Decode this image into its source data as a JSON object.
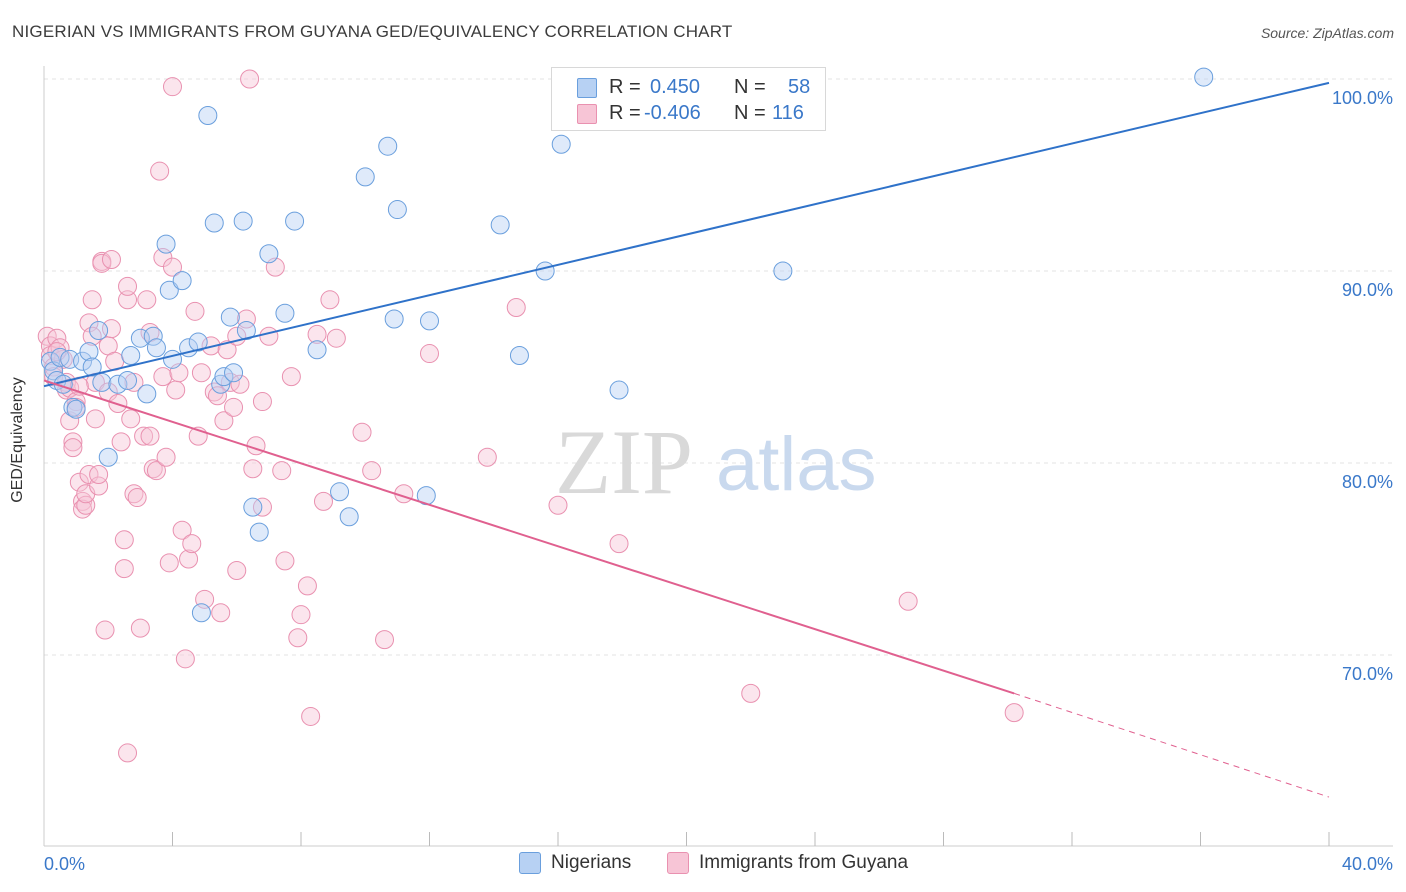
{
  "title": "NIGERIAN VS IMMIGRANTS FROM GUYANA GED/EQUIVALENCY CORRELATION CHART",
  "source": "Source: ZipAtlas.com",
  "watermark": {
    "zip": "ZIP",
    "atlas": "atlas"
  },
  "legend": {
    "series1": {
      "r_label": "R =",
      "r_value": "0.450",
      "n_label": "N =",
      "n_value": "58"
    },
    "series2": {
      "r_label": "R =",
      "r_value": "-0.406",
      "n_label": "N =",
      "n_value": "116"
    }
  },
  "chart_data": {
    "type": "scatter",
    "title": "NIGERIAN VS IMMIGRANTS FROM GUYANA GED/EQUIVALENCY CORRELATION CHART",
    "xlabel": "",
    "ylabel": "GED/Equivalency",
    "xlim": [
      0,
      40
    ],
    "ylim": [
      60,
      102
    ],
    "x_tick_labels": [
      "0.0%",
      "40.0%"
    ],
    "y_tick_labels": [
      "100.0%",
      "90.0%",
      "80.0%",
      "70.0%"
    ],
    "y_ticks": [
      100,
      90,
      80,
      70
    ],
    "grid": true,
    "legend_position": "bottom-center",
    "colors": {
      "series1": "#6a9fdd",
      "series1_fill": "#b7d1f3",
      "series1_line": "#2f72c9",
      "series2": "#e991b0",
      "series2_fill": "#f7c5d6",
      "series2_line": "#e0608f",
      "axis_text": "#3a78c9"
    },
    "series": [
      {
        "name": "Nigerians",
        "trend": {
          "x0": 0,
          "y0": 84.0,
          "x1": 40,
          "y1": 99.8
        },
        "points": [
          [
            0.2,
            85.3
          ],
          [
            0.3,
            84.8
          ],
          [
            0.4,
            84.3
          ],
          [
            0.5,
            85.5
          ],
          [
            0.6,
            84.1
          ],
          [
            0.8,
            85.4
          ],
          [
            0.9,
            82.9
          ],
          [
            1.0,
            82.8
          ],
          [
            1.2,
            85.3
          ],
          [
            1.4,
            85.8
          ],
          [
            1.5,
            85.0
          ],
          [
            1.7,
            86.9
          ],
          [
            1.8,
            84.2
          ],
          [
            2.0,
            80.3
          ],
          [
            2.3,
            84.1
          ],
          [
            2.6,
            84.3
          ],
          [
            2.7,
            85.6
          ],
          [
            3.0,
            86.5
          ],
          [
            3.2,
            83.6
          ],
          [
            3.4,
            86.6
          ],
          [
            3.5,
            86.0
          ],
          [
            3.8,
            91.4
          ],
          [
            3.9,
            89.0
          ],
          [
            4.0,
            85.4
          ],
          [
            4.3,
            89.5
          ],
          [
            4.5,
            86.0
          ],
          [
            4.8,
            86.3
          ],
          [
            5.1,
            98.1
          ],
          [
            5.3,
            92.5
          ],
          [
            5.5,
            84.1
          ],
          [
            5.6,
            84.5
          ],
          [
            5.8,
            87.6
          ],
          [
            5.9,
            84.7
          ],
          [
            6.2,
            92.6
          ],
          [
            6.3,
            86.9
          ],
          [
            6.5,
            77.7
          ],
          [
            6.7,
            76.4
          ],
          [
            7.0,
            90.9
          ],
          [
            7.5,
            87.8
          ],
          [
            7.8,
            92.6
          ],
          [
            8.5,
            85.9
          ],
          [
            9.2,
            78.5
          ],
          [
            9.5,
            77.2
          ],
          [
            10.0,
            94.9
          ],
          [
            10.7,
            96.5
          ],
          [
            10.9,
            87.5
          ],
          [
            11.0,
            93.2
          ],
          [
            11.9,
            78.3
          ],
          [
            12.0,
            87.4
          ],
          [
            14.2,
            92.4
          ],
          [
            14.8,
            85.6
          ],
          [
            15.6,
            90.0
          ],
          [
            16.1,
            96.6
          ],
          [
            17.9,
            83.8
          ],
          [
            18.9,
            100.1
          ],
          [
            23.0,
            90.0
          ],
          [
            36.1,
            100.1
          ],
          [
            4.9,
            72.2
          ]
        ]
      },
      {
        "name": "Immigrants from Guyana",
        "trend": {
          "x0": 0,
          "y0": 84.3,
          "x1": 30.2,
          "y1": 68.0,
          "dash_x1": 40,
          "dash_y1": 62.6
        },
        "points": [
          [
            0.1,
            86.6
          ],
          [
            0.2,
            86.1
          ],
          [
            0.2,
            85.6
          ],
          [
            0.3,
            85.0
          ],
          [
            0.3,
            84.5
          ],
          [
            0.4,
            86.5
          ],
          [
            0.5,
            86.0
          ],
          [
            0.6,
            85.4
          ],
          [
            0.7,
            84.2
          ],
          [
            0.7,
            83.8
          ],
          [
            0.8,
            83.9
          ],
          [
            0.8,
            82.2
          ],
          [
            0.9,
            81.1
          ],
          [
            0.9,
            80.8
          ],
          [
            1.0,
            83.2
          ],
          [
            1.0,
            82.9
          ],
          [
            1.1,
            79.0
          ],
          [
            1.2,
            78.0
          ],
          [
            1.2,
            77.6
          ],
          [
            1.3,
            77.8
          ],
          [
            1.3,
            78.4
          ],
          [
            1.4,
            79.4
          ],
          [
            1.4,
            87.3
          ],
          [
            1.5,
            88.5
          ],
          [
            1.5,
            86.6
          ],
          [
            1.6,
            84.2
          ],
          [
            1.6,
            82.3
          ],
          [
            1.7,
            78.8
          ],
          [
            1.7,
            79.4
          ],
          [
            1.8,
            90.5
          ],
          [
            1.8,
            90.4
          ],
          [
            1.9,
            71.3
          ],
          [
            2.0,
            86.1
          ],
          [
            2.0,
            83.7
          ],
          [
            2.1,
            90.6
          ],
          [
            2.1,
            87.0
          ],
          [
            2.2,
            85.3
          ],
          [
            2.3,
            83.1
          ],
          [
            2.4,
            81.1
          ],
          [
            2.5,
            76.0
          ],
          [
            2.5,
            74.5
          ],
          [
            2.6,
            88.5
          ],
          [
            2.6,
            89.2
          ],
          [
            2.7,
            82.3
          ],
          [
            2.8,
            84.2
          ],
          [
            2.8,
            78.4
          ],
          [
            2.9,
            78.2
          ],
          [
            3.0,
            71.4
          ],
          [
            3.1,
            81.4
          ],
          [
            3.2,
            88.5
          ],
          [
            3.3,
            86.8
          ],
          [
            3.3,
            81.4
          ],
          [
            3.4,
            79.7
          ],
          [
            3.5,
            79.6
          ],
          [
            3.6,
            95.2
          ],
          [
            3.7,
            90.7
          ],
          [
            3.7,
            84.5
          ],
          [
            3.8,
            80.3
          ],
          [
            3.9,
            74.8
          ],
          [
            4.0,
            99.6
          ],
          [
            4.0,
            90.2
          ],
          [
            4.1,
            83.8
          ],
          [
            4.2,
            84.7
          ],
          [
            4.3,
            76.5
          ],
          [
            4.4,
            69.8
          ],
          [
            4.5,
            75.0
          ],
          [
            4.6,
            75.8
          ],
          [
            4.7,
            87.9
          ],
          [
            4.8,
            81.4
          ],
          [
            4.9,
            84.7
          ],
          [
            5.0,
            72.9
          ],
          [
            5.2,
            86.1
          ],
          [
            5.3,
            83.7
          ],
          [
            5.4,
            83.5
          ],
          [
            5.5,
            72.2
          ],
          [
            5.6,
            82.2
          ],
          [
            5.7,
            85.9
          ],
          [
            5.8,
            84.2
          ],
          [
            5.9,
            82.9
          ],
          [
            6.0,
            86.6
          ],
          [
            6.0,
            74.4
          ],
          [
            6.3,
            87.5
          ],
          [
            6.4,
            100.0
          ],
          [
            6.5,
            79.7
          ],
          [
            6.6,
            80.9
          ],
          [
            6.8,
            83.2
          ],
          [
            6.8,
            77.7
          ],
          [
            7.0,
            86.6
          ],
          [
            7.2,
            90.2
          ],
          [
            7.4,
            79.6
          ],
          [
            7.5,
            74.9
          ],
          [
            7.7,
            84.5
          ],
          [
            7.9,
            70.9
          ],
          [
            8.0,
            72.1
          ],
          [
            8.2,
            73.6
          ],
          [
            8.3,
            66.8
          ],
          [
            8.5,
            86.7
          ],
          [
            8.7,
            78.0
          ],
          [
            8.9,
            88.5
          ],
          [
            9.1,
            86.5
          ],
          [
            9.9,
            81.6
          ],
          [
            10.2,
            79.6
          ],
          [
            10.6,
            70.8
          ],
          [
            11.2,
            78.4
          ],
          [
            12.0,
            85.7
          ],
          [
            13.8,
            80.3
          ],
          [
            14.7,
            88.1
          ],
          [
            16.0,
            77.8
          ],
          [
            17.9,
            75.8
          ],
          [
            22.0,
            68.0
          ],
          [
            26.9,
            72.8
          ],
          [
            30.2,
            67.0
          ],
          [
            2.6,
            64.9
          ],
          [
            6.1,
            84.1
          ],
          [
            1.1,
            84.0
          ],
          [
            0.4,
            85.8
          ]
        ]
      }
    ]
  },
  "bottom_legend": {
    "item1": "Nigerians",
    "item2": "Immigrants from Guyana"
  }
}
